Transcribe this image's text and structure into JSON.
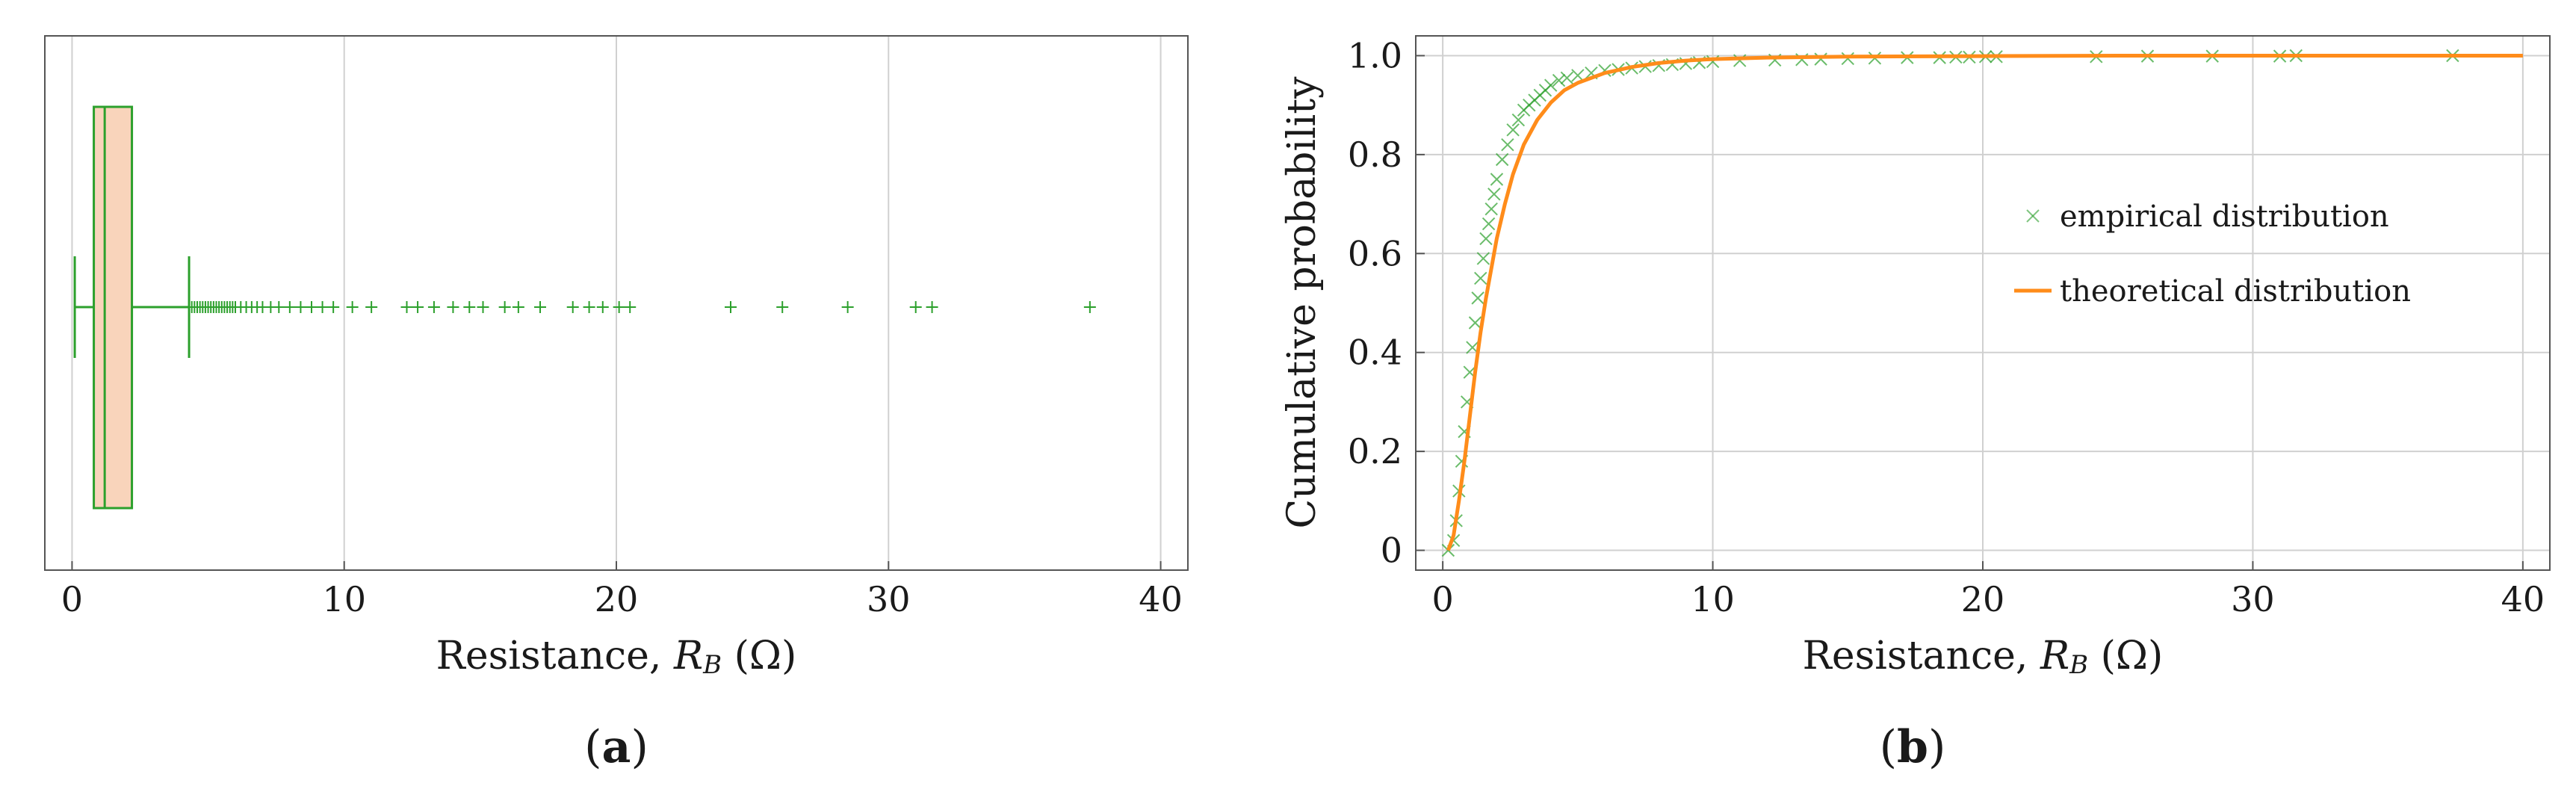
{
  "chart_data": [
    {
      "id": "a",
      "type": "boxplot",
      "panel_label": {
        "open": "(",
        "letter": "a",
        "close": ")"
      },
      "xlabel": {
        "prefix": "Resistance, ",
        "symbol": "R",
        "subscript": "B",
        "suffix": " (Ω)"
      },
      "xlim": [
        -1,
        41
      ],
      "xticks": [
        0,
        10,
        20,
        30,
        40
      ],
      "grid": true,
      "color": "#2ca02c",
      "fill_color": "#f4b183",
      "box": {
        "whisker_low": 0.1,
        "q1": 0.8,
        "median": 1.2,
        "q3": 2.2,
        "whisker_high": 4.3
      },
      "outliers": [
        4.4,
        4.5,
        4.6,
        4.7,
        4.8,
        4.9,
        5.0,
        5.1,
        5.2,
        5.3,
        5.4,
        5.5,
        5.6,
        5.7,
        5.8,
        5.9,
        6.0,
        6.2,
        6.4,
        6.6,
        6.8,
        7.0,
        7.3,
        7.6,
        8.0,
        8.4,
        8.8,
        9.2,
        9.6,
        10.3,
        11.0,
        12.3,
        12.7,
        13.3,
        14.0,
        14.6,
        15.1,
        15.9,
        16.4,
        17.2,
        18.4,
        19.0,
        19.5,
        20.1,
        20.5,
        24.2,
        26.1,
        28.5,
        31.0,
        31.6,
        37.4
      ]
    },
    {
      "id": "b",
      "type": "scatter+line",
      "panel_label": {
        "open": "(",
        "letter": "b",
        "close": ")"
      },
      "xlabel": {
        "prefix": "Resistance, ",
        "symbol": "R",
        "subscript": "B",
        "suffix": " (Ω)"
      },
      "ylabel": "Cumulative probability",
      "xlim": [
        -1,
        41
      ],
      "ylim": [
        -0.04,
        1.04
      ],
      "xticks": [
        0,
        10,
        20,
        30,
        40
      ],
      "yticks": [
        0,
        0.2,
        0.4,
        0.6,
        0.8,
        1.0
      ],
      "ytick_labels": [
        "0",
        "0.2",
        "0.4",
        "0.6",
        "0.8",
        "1.0"
      ],
      "grid": true,
      "legend_position": "right",
      "series": [
        {
          "name": "empirical distribution",
          "kind": "scatter",
          "marker": "x",
          "color": "#2ca02c",
          "x": [
            0.2,
            0.4,
            0.5,
            0.6,
            0.7,
            0.8,
            0.9,
            1.0,
            1.1,
            1.2,
            1.3,
            1.4,
            1.5,
            1.6,
            1.7,
            1.8,
            1.9,
            2.0,
            2.2,
            2.4,
            2.6,
            2.8,
            3.0,
            3.2,
            3.4,
            3.6,
            3.8,
            4.0,
            4.3,
            4.6,
            5.0,
            5.5,
            6.0,
            6.5,
            7.0,
            7.5,
            8.0,
            8.5,
            9.0,
            9.5,
            10.0,
            11.0,
            12.3,
            13.3,
            14.0,
            15.0,
            16.0,
            17.2,
            18.4,
            19.0,
            19.5,
            20.1,
            20.5,
            24.2,
            26.1,
            28.5,
            31.0,
            31.6,
            37.4
          ],
          "y": [
            0.0,
            0.02,
            0.06,
            0.12,
            0.18,
            0.24,
            0.3,
            0.36,
            0.41,
            0.46,
            0.51,
            0.55,
            0.59,
            0.63,
            0.66,
            0.69,
            0.72,
            0.75,
            0.79,
            0.82,
            0.85,
            0.87,
            0.89,
            0.9,
            0.91,
            0.92,
            0.93,
            0.94,
            0.95,
            0.955,
            0.96,
            0.965,
            0.97,
            0.972,
            0.975,
            0.978,
            0.98,
            0.982,
            0.984,
            0.986,
            0.988,
            0.99,
            0.991,
            0.992,
            0.993,
            0.994,
            0.995,
            0.996,
            0.996,
            0.997,
            0.997,
            0.998,
            0.998,
            0.998,
            0.999,
            0.999,
            0.999,
            1.0,
            1.0
          ]
        },
        {
          "name": "theoretical distribution",
          "kind": "line",
          "color": "#ff8c1a",
          "x": [
            0.2,
            0.4,
            0.6,
            0.8,
            1.0,
            1.2,
            1.4,
            1.6,
            1.8,
            2.0,
            2.3,
            2.6,
            3.0,
            3.5,
            4.0,
            4.5,
            5.0,
            6.0,
            7.0,
            8.0,
            9.0,
            10.0,
            12.0,
            15.0,
            20.0,
            25.0,
            30.0,
            35.0,
            40.0
          ],
          "y": [
            0.0,
            0.03,
            0.1,
            0.18,
            0.27,
            0.36,
            0.44,
            0.51,
            0.57,
            0.63,
            0.7,
            0.76,
            0.82,
            0.87,
            0.905,
            0.93,
            0.945,
            0.965,
            0.977,
            0.985,
            0.99,
            0.993,
            0.996,
            0.998,
            0.999,
            1.0,
            1.0,
            1.0,
            1.0
          ]
        }
      ]
    }
  ]
}
